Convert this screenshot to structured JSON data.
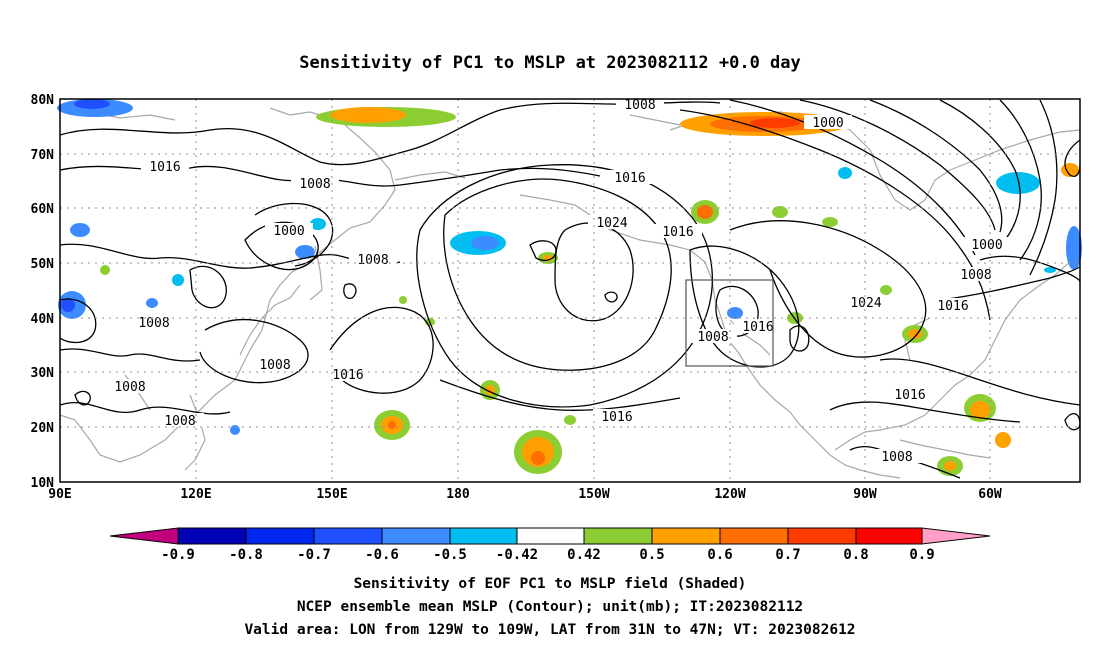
{
  "title": "Sensitivity of PC1 to MSLP at 2023082112 +0.0 day",
  "lat_labels": [
    "80N",
    "70N",
    "60N",
    "50N",
    "40N",
    "30N",
    "20N",
    "10N"
  ],
  "lon_labels": [
    "90E",
    "120E",
    "150E",
    "180",
    "150W",
    "120W",
    "90W",
    "60W"
  ],
  "contour_labels": [
    "1008",
    "1016",
    "1008",
    "1000",
    "1008",
    "1016",
    "1024",
    "1016",
    "1000",
    "1000",
    "1008",
    "1024",
    "1016",
    "1016",
    "1008",
    "1008",
    "1008",
    "1008",
    "1016",
    "1008",
    "1016",
    "1016",
    "1008",
    "1008"
  ],
  "colorbar": {
    "ticks": [
      "-0.9",
      "-0.8",
      "-0.7",
      "-0.6",
      "-0.5",
      "-0.42",
      "0.42",
      "0.5",
      "0.6",
      "0.7",
      "0.8",
      "0.9"
    ],
    "colors": [
      "#c0007f",
      "#0000b4",
      "#0028f0",
      "#1e50ff",
      "#3c8cff",
      "#00bef0",
      "#ffffff",
      "#8ccd32",
      "#ffa000",
      "#ff6e00",
      "#ff3c00",
      "#ff0000",
      "#ffa0c8"
    ]
  },
  "captions": [
    "Sensitivity of EOF PC1 to MSLP field (Shaded)",
    "NCEP ensemble mean MSLP (Contour); unit(mb); IT:2023082112",
    "Valid area: LON from 129W to 109W, LAT from 31N to 47N; VT: 2023082612"
  ]
}
